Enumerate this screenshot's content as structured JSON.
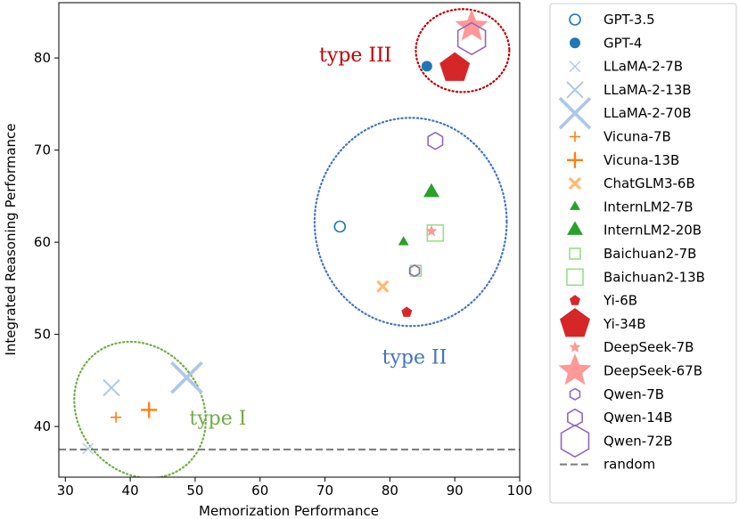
{
  "chart_data": {
    "type": "scatter",
    "title": "",
    "xlabel": "Memorization Performance",
    "ylabel": "Integrated Reasoning Performance",
    "xlim": [
      29,
      100
    ],
    "ylim": [
      34.5,
      86
    ],
    "x_ticks": [
      30,
      40,
      50,
      60,
      70,
      80,
      90,
      100
    ],
    "y_ticks": [
      40,
      50,
      60,
      70,
      80
    ],
    "grid": false,
    "legend_position": "outside-right",
    "series": [
      {
        "name": "GPT-3.5",
        "marker": "circle-open",
        "size": "small",
        "color": "#1f77b4",
        "points": [
          {
            "x": 72.3,
            "y": 61.7
          }
        ]
      },
      {
        "name": "GPT-4",
        "marker": "circle",
        "size": "small",
        "color": "#1f77b4",
        "points": [
          {
            "x": 85.7,
            "y": 79.1
          }
        ]
      },
      {
        "name": "LLaMA-2-7B",
        "marker": "x",
        "size": "small",
        "color": "#aec7e8",
        "points": [
          {
            "x": 33.5,
            "y": 37.6
          }
        ]
      },
      {
        "name": "LLaMA-2-13B",
        "marker": "x",
        "size": "medium",
        "color": "#aec7e8",
        "points": [
          {
            "x": 37.1,
            "y": 44.2
          }
        ]
      },
      {
        "name": "LLaMA-2-70B",
        "marker": "x",
        "size": "large",
        "color": "#aec7e8",
        "points": [
          {
            "x": 48.7,
            "y": 45.3
          }
        ]
      },
      {
        "name": "Vicuna-7B",
        "marker": "plus",
        "size": "small",
        "color": "#ff7f0e",
        "points": [
          {
            "x": 37.8,
            "y": 41.0
          }
        ]
      },
      {
        "name": "Vicuna-13B",
        "marker": "plus",
        "size": "medium",
        "color": "#ff7f0e",
        "points": [
          {
            "x": 42.9,
            "y": 41.8
          }
        ]
      },
      {
        "name": "ChatGLM3-6B",
        "marker": "x-filled",
        "size": "small",
        "color": "#ffbb78",
        "points": [
          {
            "x": 78.9,
            "y": 55.2
          }
        ]
      },
      {
        "name": "InternLM2-7B",
        "marker": "triangle",
        "size": "small",
        "color": "#2ca02c",
        "points": [
          {
            "x": 82.1,
            "y": 60.0
          }
        ]
      },
      {
        "name": "InternLM2-20B",
        "marker": "triangle",
        "size": "medium",
        "color": "#2ca02c",
        "points": [
          {
            "x": 86.4,
            "y": 65.4
          }
        ]
      },
      {
        "name": "Baichuan2-7B",
        "marker": "square-open",
        "size": "small",
        "color": "#98df8a",
        "points": [
          {
            "x": 84.0,
            "y": 56.9
          }
        ]
      },
      {
        "name": "Baichuan2-13B",
        "marker": "square-open",
        "size": "medium",
        "color": "#98df8a",
        "points": [
          {
            "x": 87.0,
            "y": 61.0
          }
        ]
      },
      {
        "name": "Yi-6B",
        "marker": "pentagon",
        "size": "small",
        "color": "#d62728",
        "points": [
          {
            "x": 82.6,
            "y": 52.4
          }
        ]
      },
      {
        "name": "Yi-34B",
        "marker": "pentagon",
        "size": "large",
        "color": "#d62728",
        "points": [
          {
            "x": 90.0,
            "y": 78.9
          }
        ]
      },
      {
        "name": "DeepSeek-7B",
        "marker": "star",
        "size": "small",
        "color": "#ff9896",
        "points": [
          {
            "x": 86.4,
            "y": 61.2
          }
        ]
      },
      {
        "name": "DeepSeek-67B",
        "marker": "star",
        "size": "large",
        "color": "#ff9896",
        "points": [
          {
            "x": 92.6,
            "y": 83.4
          }
        ]
      },
      {
        "name": "Qwen-7B",
        "marker": "hexagon-open",
        "size": "small",
        "color": "#9467bd",
        "points": [
          {
            "x": 83.8,
            "y": 56.9
          }
        ]
      },
      {
        "name": "Qwen-14B",
        "marker": "hexagon-open",
        "size": "medium",
        "color": "#9467bd",
        "points": [
          {
            "x": 87.0,
            "y": 71.0
          }
        ]
      },
      {
        "name": "Qwen-72B",
        "marker": "hexagon-open",
        "size": "large",
        "color": "#9467bd",
        "points": [
          {
            "x": 92.6,
            "y": 82.1
          }
        ]
      }
    ],
    "reference_lines": [
      {
        "name": "random",
        "orientation": "horizontal",
        "y": 37.5,
        "style": "dashed",
        "color": "#808080"
      }
    ],
    "annotations": [
      {
        "text": "type I",
        "x": 53.5,
        "y": 40.8,
        "color": "#70ad47",
        "ellipse": {
          "cx": 41.5,
          "cy": 41.8,
          "rx": 9.5,
          "ry": 7.8,
          "color": "#70ad47"
        }
      },
      {
        "text": "type II",
        "x": 83.8,
        "y": 47.4,
        "color": "#4472c4",
        "ellipse": {
          "cx": 83.2,
          "cy": 62.2,
          "rx": 14.8,
          "ry": 11.3,
          "color": "#4472c4"
        }
      },
      {
        "text": "type III",
        "x": 74.7,
        "y": 80.2,
        "color": "#c00000",
        "ellipse": {
          "cx": 91.2,
          "cy": 80.8,
          "rx": 7.2,
          "ry": 4.5,
          "color": "#c00000"
        }
      }
    ]
  }
}
